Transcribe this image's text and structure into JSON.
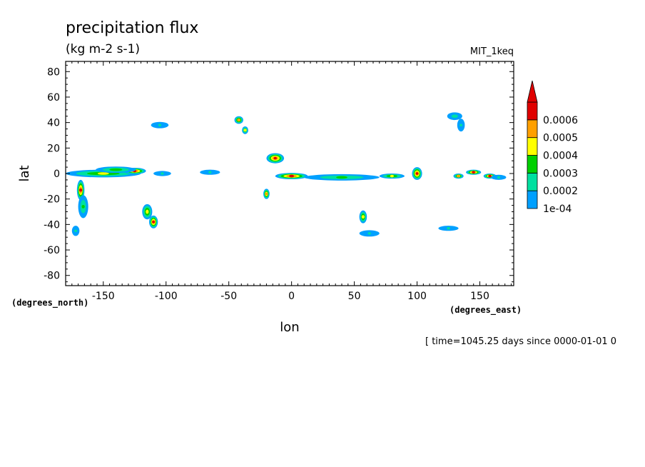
{
  "chart_data": {
    "type": "heatmap",
    "title": "precipitation flux",
    "units": "(kg m-2 s-1)",
    "dataset": "MIT_1keq",
    "xlabel": "lon",
    "ylabel": "lat",
    "x_unit_label": "(degrees_east)",
    "y_unit_label": "(degrees_north)",
    "time_label": "[ time=1045.25 days since 0000-01-01 0",
    "xlim": [
      -180,
      177
    ],
    "ylim": [
      -88,
      88
    ],
    "x_ticks": [
      -150,
      -100,
      -50,
      0,
      50,
      100,
      150
    ],
    "x_tick_labels": [
      "-150",
      "-100",
      "-50",
      "0",
      "50",
      "100",
      "150"
    ],
    "y_ticks": [
      80,
      60,
      40,
      20,
      0,
      -20,
      -40,
      -60,
      -80
    ],
    "y_tick_labels": [
      "80",
      "60",
      "40",
      "20",
      "0",
      "-20",
      "-40",
      "-60",
      "-80"
    ],
    "colorbar": {
      "levels": [
        0.0001,
        0.0002,
        0.0003,
        0.0004,
        0.0005,
        0.0006
      ],
      "labels": [
        "1e-04",
        "0.0002",
        "0.0003",
        "0.0004",
        "0.0005",
        "0.0006"
      ],
      "colors": [
        "#00a0ff",
        "#00e0a0",
        "#00d000",
        "#ffff00",
        "#ffa000",
        "#e00000"
      ],
      "extend": "max"
    },
    "features": [
      {
        "lon": -150,
        "lat": 0,
        "peak": 0.0004,
        "rx": 30,
        "ry": 3
      },
      {
        "lon": -125,
        "lat": 2,
        "peak": 0.0006,
        "rx": 9,
        "ry": 2.5
      },
      {
        "lon": -140,
        "lat": 3,
        "peak": 0.00035,
        "rx": 16,
        "ry": 2.5
      },
      {
        "lon": -103,
        "lat": 0,
        "peak": 0.0002,
        "rx": 7,
        "ry": 2
      },
      {
        "lon": -65,
        "lat": 1,
        "peak": 0.0002,
        "rx": 8,
        "ry": 2
      },
      {
        "lon": -168,
        "lat": -13,
        "peak": 0.0006,
        "rx": 3,
        "ry": 8
      },
      {
        "lon": -166,
        "lat": -26,
        "peak": 0.0003,
        "rx": 4,
        "ry": 9
      },
      {
        "lon": -115,
        "lat": -30,
        "peak": 0.00045,
        "rx": 4,
        "ry": 6
      },
      {
        "lon": -110,
        "lat": -38,
        "peak": 0.0006,
        "rx": 3.5,
        "ry": 5
      },
      {
        "lon": -13,
        "lat": 12,
        "peak": 0.0006,
        "rx": 7,
        "ry": 4
      },
      {
        "lon": -20,
        "lat": -16,
        "peak": 0.00055,
        "rx": 2.5,
        "ry": 4
      },
      {
        "lon": 0,
        "lat": -2,
        "peak": 0.0006,
        "rx": 13,
        "ry": 2.5
      },
      {
        "lon": 40,
        "lat": -3,
        "peak": 0.0003,
        "rx": 30,
        "ry": 2.5
      },
      {
        "lon": 80,
        "lat": -2,
        "peak": 0.0004,
        "rx": 10,
        "ry": 2
      },
      {
        "lon": 100,
        "lat": 0,
        "peak": 0.0006,
        "rx": 4,
        "ry": 5
      },
      {
        "lon": 145,
        "lat": 1,
        "peak": 0.0006,
        "rx": 6,
        "ry": 2
      },
      {
        "lon": 133,
        "lat": -2,
        "peak": 0.0005,
        "rx": 4,
        "ry": 2
      },
      {
        "lon": 158,
        "lat": -2,
        "peak": 0.0006,
        "rx": 5,
        "ry": 2
      },
      {
        "lon": 165,
        "lat": -3,
        "peak": 0.0002,
        "rx": 6,
        "ry": 2
      },
      {
        "lon": -42,
        "lat": 42,
        "peak": 0.0005,
        "rx": 3.5,
        "ry": 3
      },
      {
        "lon": -37,
        "lat": 34,
        "peak": 0.0004,
        "rx": 2.5,
        "ry": 3
      },
      {
        "lon": -105,
        "lat": 38,
        "peak": 0.0002,
        "rx": 7,
        "ry": 2.5
      },
      {
        "lon": 130,
        "lat": 45,
        "peak": 0.00025,
        "rx": 6,
        "ry": 3
      },
      {
        "lon": 135,
        "lat": 38,
        "peak": 0.0002,
        "rx": 3,
        "ry": 5
      },
      {
        "lon": 57,
        "lat": -34,
        "peak": 0.00045,
        "rx": 3,
        "ry": 5
      },
      {
        "lon": 62,
        "lat": -47,
        "peak": 0.0002,
        "rx": 8,
        "ry": 2.5
      },
      {
        "lon": 125,
        "lat": -43,
        "peak": 0.0002,
        "rx": 8,
        "ry": 2
      },
      {
        "lon": -172,
        "lat": -45,
        "peak": 0.0002,
        "rx": 3,
        "ry": 4
      }
    ]
  }
}
